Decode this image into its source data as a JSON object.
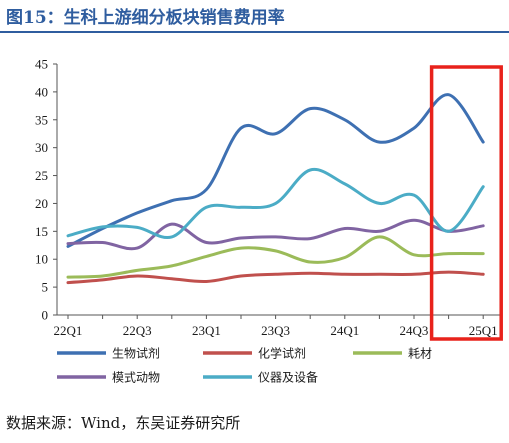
{
  "header": {
    "title": "图15：生科上游细分板块销售费用率"
  },
  "footer": {
    "source": "数据来源：Wind，东吴证券研究所"
  },
  "chart_data": {
    "type": "line",
    "x": [
      "22Q1",
      "22Q2",
      "22Q3",
      "22Q4",
      "23Q1",
      "23Q2",
      "23Q3",
      "23Q4",
      "24Q1",
      "24Q2",
      "24Q3",
      "24Q4",
      "25Q1"
    ],
    "x_tick_labels": [
      "22Q1",
      "22Q3",
      "23Q1",
      "23Q3",
      "24Q1",
      "24Q3",
      "25Q1"
    ],
    "ylim": [
      0,
      45
    ],
    "y_ticks": [
      0,
      5,
      10,
      15,
      20,
      25,
      30,
      35,
      40,
      45
    ],
    "grid": false,
    "legend_position": "bottom",
    "highlight": {
      "from": "24Q4",
      "to": "25Q1",
      "color": "#e8221b"
    },
    "series": [
      {
        "name": "生物试剂",
        "color": "#3e70b2",
        "values": [
          12.3,
          15.5,
          18.3,
          20.5,
          22.5,
          33.5,
          32.5,
          37.0,
          35.0,
          31.0,
          33.5,
          39.5,
          31.0
        ]
      },
      {
        "name": "化学试剂",
        "color": "#c0504d",
        "values": [
          5.8,
          6.3,
          7.0,
          6.5,
          6.0,
          7.0,
          7.3,
          7.5,
          7.3,
          7.3,
          7.3,
          7.7,
          7.3
        ]
      },
      {
        "name": "耗材",
        "color": "#9bbb59",
        "values": [
          6.8,
          7.0,
          8.0,
          8.8,
          10.5,
          12.0,
          11.5,
          9.5,
          10.3,
          14.0,
          10.8,
          11.0,
          11.0
        ]
      },
      {
        "name": "模式动物",
        "color": "#8064a2",
        "values": [
          12.8,
          13.0,
          12.0,
          16.3,
          13.0,
          13.8,
          14.0,
          13.7,
          15.5,
          15.0,
          17.0,
          15.0,
          16.0
        ]
      },
      {
        "name": "仪器及设备",
        "color": "#4bacc6",
        "values": [
          14.2,
          15.8,
          15.7,
          14.0,
          19.3,
          19.3,
          20.0,
          26.0,
          23.5,
          20.0,
          21.5,
          15.0,
          23.0
        ]
      }
    ]
  }
}
